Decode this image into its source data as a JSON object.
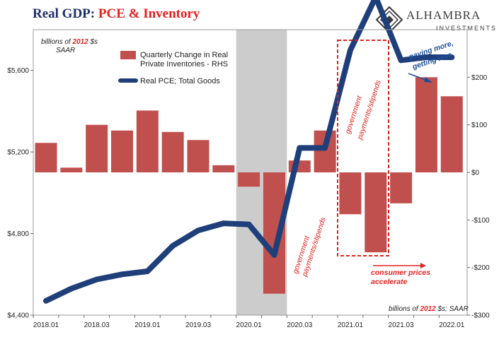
{
  "header": {
    "title_part1": "Real GDP: ",
    "title_part2": "PCE & Inventory",
    "logo_name": "ALHAMBRA",
    "logo_sub": "INVESTMENTS"
  },
  "colors": {
    "bar": "#c0504d",
    "line": "#1f3f7a",
    "recession": "#cccccc",
    "annotation_red": "#e3211c",
    "annotation_blue": "#1f4e9b",
    "title_navy": "#1f2f6b"
  },
  "chart_data": {
    "type": "bar+line",
    "categories": [
      "2018.01",
      "2018.02",
      "2018.03",
      "2018.04",
      "2019.01",
      "2019.02",
      "2019.03",
      "2019.04",
      "2020.01",
      "2020.02",
      "2020.03",
      "2020.04",
      "2021.01",
      "2021.02",
      "2021.03",
      "2021.04",
      "2022.01"
    ],
    "x_tick_labels": [
      "2018.01",
      "2018.03",
      "2019.01",
      "2019.03",
      "2020.01",
      "2020.03",
      "2021.01",
      "2021.03",
      "2022.01"
    ],
    "left_axis": {
      "ylim": [
        4400,
        5800
      ],
      "ticks": [
        "$4,400",
        "$4,800",
        "$5,200",
        "$5,600"
      ],
      "tick_values": [
        4400,
        4800,
        5200,
        5600
      ],
      "unit_label_pre": "billions of ",
      "unit_label_year": "2012",
      "unit_label_post": " $s",
      "unit_label_line2": "SAAR"
    },
    "right_axis": {
      "ylim": [
        -300,
        300
      ],
      "ticks": [
        "-$300",
        "-$200",
        "-$100",
        "$0",
        "$100",
        "$200"
      ],
      "tick_values": [
        -300,
        -200,
        -100,
        0,
        100,
        200
      ],
      "unit_label_pre": "billions of ",
      "unit_label_year": "2012",
      "unit_label_post": " $s; SAAR"
    },
    "series": [
      {
        "name": "Quarterly Change in Real Private Inventories - RHS",
        "legend_line1": "Quarterly Change in Real",
        "legend_line2": "Private Inventories - RHS",
        "type": "bar",
        "axis": "right",
        "values": [
          62,
          10,
          100,
          88,
          130,
          85,
          68,
          15,
          -30,
          -255,
          25,
          88,
          -88,
          -168,
          -65,
          200,
          160
        ]
      },
      {
        "name": "Real PCE; Total Goods",
        "type": "line",
        "axis": "left",
        "values": [
          4470,
          4530,
          4575,
          4600,
          4615,
          4740,
          4815,
          4850,
          4845,
          4695,
          5220,
          5220,
          5700,
          5960,
          5650,
          5665,
          5665
        ]
      }
    ],
    "recession_span": [
      "2020.01",
      "2020.02"
    ],
    "annotations": {
      "gov1_line1": "government",
      "gov1_line2": "payments/stipends",
      "gov2_line1": "government",
      "gov2_line2": "payments/stipends",
      "consumer_line1": "consumer prices",
      "consumer_line2": "accelerate",
      "paying_line1": "paying more,",
      "paying_line2": "getting less"
    }
  }
}
